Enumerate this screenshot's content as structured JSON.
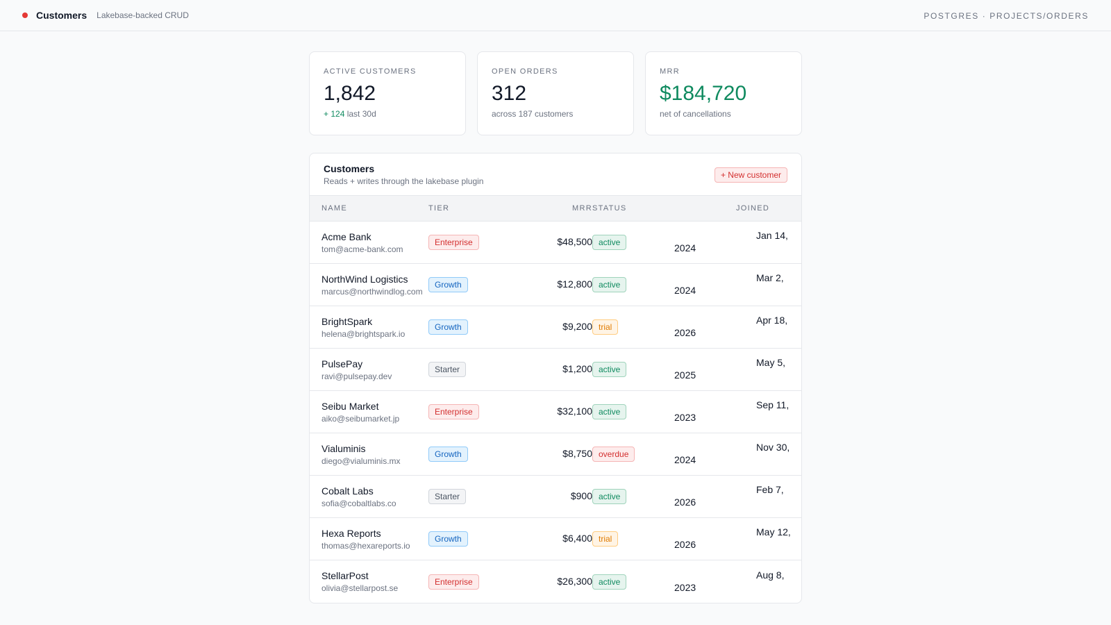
{
  "header": {
    "title": "Customers",
    "subtitle": "Lakebase-backed CRUD",
    "context": "POSTGRES · PROJECTS/ORDERS",
    "dot_color": "#e53935"
  },
  "stats": [
    {
      "label": "ACTIVE CUSTOMERS",
      "value": "1,842",
      "delta": "+ 124",
      "note": "last 30d"
    },
    {
      "label": "OPEN ORDERS",
      "value": "312",
      "note": "across 187 customers"
    },
    {
      "label": "MRR",
      "value": "$184,720",
      "note": "net of cancellations",
      "value_color": "#0f8a5f"
    }
  ],
  "table": {
    "title": "Customers",
    "subtitle": "Reads + writes through the lakebase plugin",
    "new_button": "+ New customer",
    "columns": {
      "name": "NAME",
      "tier": "TIER",
      "mrr": "MRR",
      "status": "STATUS",
      "joined": "JOINED"
    },
    "rows": [
      {
        "name": "Acme Bank",
        "email": "tom@acme-bank.com",
        "tier": "Enterprise",
        "mrr": "$48,500",
        "status": "active",
        "joined": "Jan 14, 2024"
      },
      {
        "name": "NorthWind Logistics",
        "email": "marcus@northwindlog.com",
        "tier": "Growth",
        "mrr": "$12,800",
        "status": "active",
        "joined": "Mar 2, 2024"
      },
      {
        "name": "BrightSpark",
        "email": "helena@brightspark.io",
        "tier": "Growth",
        "mrr": "$9,200",
        "status": "trial",
        "joined": "Apr 18, 2026"
      },
      {
        "name": "PulsePay",
        "email": "ravi@pulsepay.dev",
        "tier": "Starter",
        "mrr": "$1,200",
        "status": "active",
        "joined": "May 5, 2025"
      },
      {
        "name": "Seibu Market",
        "email": "aiko@seibumarket.jp",
        "tier": "Enterprise",
        "mrr": "$32,100",
        "status": "active",
        "joined": "Sep 11, 2023"
      },
      {
        "name": "Vialuminis",
        "email": "diego@vialuminis.mx",
        "tier": "Growth",
        "mrr": "$8,750",
        "status": "overdue",
        "joined": "Nov 30, 2024"
      },
      {
        "name": "Cobalt Labs",
        "email": "sofia@cobaltlabs.co",
        "tier": "Starter",
        "mrr": "$900",
        "status": "active",
        "joined": "Feb 7, 2026"
      },
      {
        "name": "Hexa Reports",
        "email": "thomas@hexareports.io",
        "tier": "Growth",
        "mrr": "$6,400",
        "status": "trial",
        "joined": "May 12, 2026"
      },
      {
        "name": "StellarPost",
        "email": "olivia@stellarpost.se",
        "tier": "Enterprise",
        "mrr": "$26,300",
        "status": "active",
        "joined": "Aug 8, 2023"
      }
    ]
  }
}
